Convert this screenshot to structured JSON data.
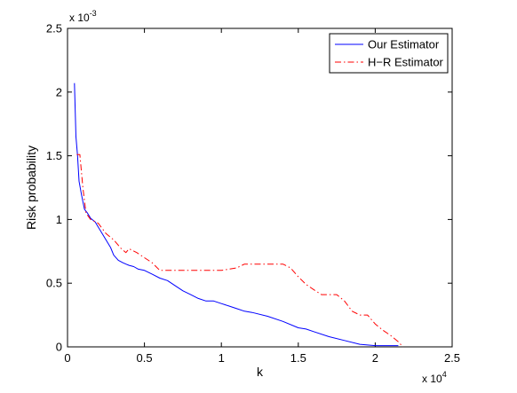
{
  "chart_data": {
    "type": "line",
    "title": "",
    "xlabel": "k",
    "ylabel": "Risk probability",
    "xlim": [
      0,
      25000
    ],
    "ylim": [
      0,
      0.0025
    ],
    "x_ticks": [
      0,
      5000,
      10000,
      15000,
      20000,
      25000
    ],
    "x_tick_labels": [
      "0",
      "0.5",
      "1",
      "1.5",
      "2",
      "2.5"
    ],
    "y_ticks": [
      0,
      0.0005,
      0.001,
      0.0015,
      0.002,
      0.0025
    ],
    "y_tick_labels": [
      "0",
      "0.5",
      "1",
      "1.5",
      "2",
      "2.5"
    ],
    "x_multiplier": {
      "base": "x 10",
      "exp": "4"
    },
    "y_multiplier": {
      "base": "x 10",
      "exp": "-3"
    },
    "grid": false,
    "legend": "top-right",
    "series": [
      {
        "name": "Our Estimator",
        "style": "solid",
        "color": "#0000ff",
        "x": [
          450,
          550,
          650,
          750,
          900,
          1000,
          1100,
          1300,
          1500,
          1800,
          2000,
          2200,
          2500,
          2800,
          3000,
          3300,
          3600,
          3800,
          4000,
          4300,
          4600,
          5000,
          5500,
          6000,
          6500,
          7000,
          7500,
          8000,
          8500,
          9000,
          9500,
          10000,
          10500,
          11000,
          11500,
          12000,
          13000,
          14000,
          15000,
          15500,
          16000,
          17000,
          18000,
          19000,
          20000,
          21000,
          21500
        ],
        "y": [
          0.00207,
          0.00165,
          0.0015,
          0.0013,
          0.0012,
          0.00114,
          0.00108,
          0.00105,
          0.00101,
          0.00098,
          0.00094,
          0.0009,
          0.00084,
          0.00078,
          0.00072,
          0.00068,
          0.00066,
          0.00065,
          0.00064,
          0.00063,
          0.00061,
          0.0006,
          0.00057,
          0.00054,
          0.00052,
          0.00048,
          0.00044,
          0.00041,
          0.00038,
          0.00036,
          0.00036,
          0.00034,
          0.00032,
          0.0003,
          0.00028,
          0.00027,
          0.00024,
          0.0002,
          0.00015,
          0.00014,
          0.00012,
          8e-05,
          5e-05,
          2e-05,
          1e-05,
          1e-05,
          1e-05
        ]
      },
      {
        "name": "H−R Estimator",
        "style": "dashdot",
        "color": "#ff0000",
        "x": [
          600,
          800,
          1000,
          1200,
          1500,
          2000,
          2500,
          3000,
          3500,
          3800,
          4000,
          4500,
          5000,
          5500,
          6000,
          7000,
          8000,
          9000,
          10000,
          11000,
          11500,
          12000,
          13000,
          14000,
          14500,
          15000,
          15500,
          16000,
          16500,
          17000,
          17500,
          18000,
          18500,
          19000,
          19500,
          20000,
          20500,
          21000,
          21500,
          21800
        ],
        "y": [
          0.00151,
          0.00151,
          0.00125,
          0.00105,
          0.001,
          0.00097,
          0.00089,
          0.00084,
          0.00077,
          0.00074,
          0.00077,
          0.00074,
          0.0007,
          0.00066,
          0.0006,
          0.0006,
          0.0006,
          0.0006,
          0.0006,
          0.00062,
          0.00065,
          0.00065,
          0.00065,
          0.00065,
          0.00062,
          0.00055,
          0.00049,
          0.00045,
          0.00041,
          0.00041,
          0.00041,
          0.00036,
          0.00028,
          0.00025,
          0.00025,
          0.00018,
          0.00013,
          9e-05,
          4e-05,
          0.0
        ]
      }
    ]
  }
}
